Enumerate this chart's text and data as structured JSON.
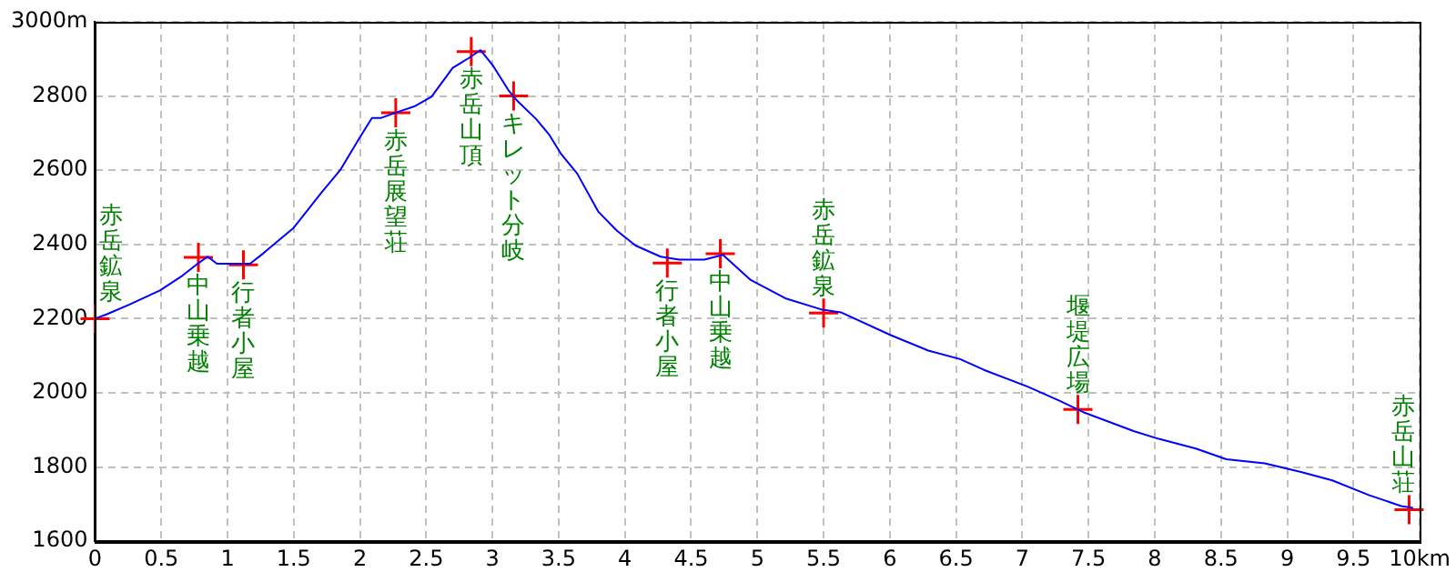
{
  "chart_data": {
    "type": "line",
    "xlim": [
      0,
      10
    ],
    "xticks": [
      0,
      0.5,
      1,
      1.5,
      2,
      2.5,
      3,
      3.5,
      4,
      4.5,
      5,
      5.5,
      6,
      6.5,
      7,
      7.5,
      8,
      8.5,
      9,
      9.5,
      {
        "value": 10,
        "label": "10km"
      }
    ],
    "ylim": [
      1600,
      3000
    ],
    "yticks": [
      1600,
      1800,
      2000,
      2200,
      2400,
      2600,
      2800,
      {
        "value": 3000,
        "label": "3000m"
      }
    ],
    "grid": true,
    "legend": false,
    "series": [
      {
        "type": "line",
        "color": "#0000ff",
        "marker": "none",
        "line_style": "solid",
        "x": [
          0,
          0.09,
          0.26,
          0.49,
          0.66,
          0.77,
          0.85,
          0.92,
          1.17,
          1.27,
          1.5,
          1.71,
          1.85,
          1.99,
          2.09,
          2.16,
          2.3,
          2.41,
          2.54,
          2.7,
          2.82,
          2.91,
          3.0,
          3.12,
          3.19,
          3.33,
          3.43,
          3.52,
          3.64,
          3.8,
          3.94,
          4.08,
          4.27,
          4.41,
          4.6,
          4.74,
          4.95,
          5.21,
          5.49,
          5.63,
          6.01,
          6.29,
          6.53,
          6.71,
          7.04,
          7.28,
          7.46,
          7.84,
          8.03,
          8.31,
          8.54,
          8.83,
          9.11,
          9.34,
          9.62,
          9.86,
          9.95
        ],
        "values": [
          2200,
          2212,
          2238,
          2276,
          2316,
          2347,
          2367,
          2348,
          2348,
          2376,
          2445,
          2540,
          2600,
          2683,
          2741,
          2741,
          2759,
          2772,
          2798,
          2876,
          2902,
          2924,
          2884,
          2816,
          2786,
          2738,
          2695,
          2643,
          2591,
          2488,
          2437,
          2397,
          2367,
          2359,
          2359,
          2372,
          2304,
          2255,
          2224,
          2217,
          2155,
          2114,
          2091,
          2062,
          2017,
          1979,
          1948,
          1897,
          1876,
          1850,
          1821,
          1810,
          1786,
          1764,
          1724,
          1695,
          1690
        ]
      },
      {
        "type": "scatter",
        "color": "#ff0000",
        "marker": "cross",
        "x": [
          0,
          0.78,
          1.12,
          2.27,
          2.84,
          3.16,
          4.32,
          4.72,
          5.5,
          7.42,
          9.92
        ],
        "values": [
          2200,
          2365,
          2345,
          2755,
          2920,
          2800,
          2350,
          2375,
          2215,
          1955,
          1685
        ]
      }
    ],
    "annotations": [
      {
        "text": "赤岳鉱泉",
        "x": 0,
        "y": 2200
      },
      {
        "text": "中山乗越",
        "x": 0.78,
        "y": 2365
      },
      {
        "text": "行者小屋",
        "x": 1.12,
        "y": 2345
      },
      {
        "text": "赤岳展望荘",
        "x": 2.27,
        "y": 2755
      },
      {
        "text": "赤岳山頂",
        "x": 2.84,
        "y": 2920
      },
      {
        "text": "キレット分岐",
        "x": 3.16,
        "y": 2800
      },
      {
        "text": "行者小屋",
        "x": 4.32,
        "y": 2350
      },
      {
        "text": "中山乗越",
        "x": 4.72,
        "y": 2375
      },
      {
        "text": "赤岳鉱泉",
        "x": 5.5,
        "y": 2215
      },
      {
        "text": "堰堤広場",
        "x": 7.42,
        "y": 1955
      },
      {
        "text": "赤岳山荘",
        "x": 9.92,
        "y": 1685
      }
    ]
  }
}
